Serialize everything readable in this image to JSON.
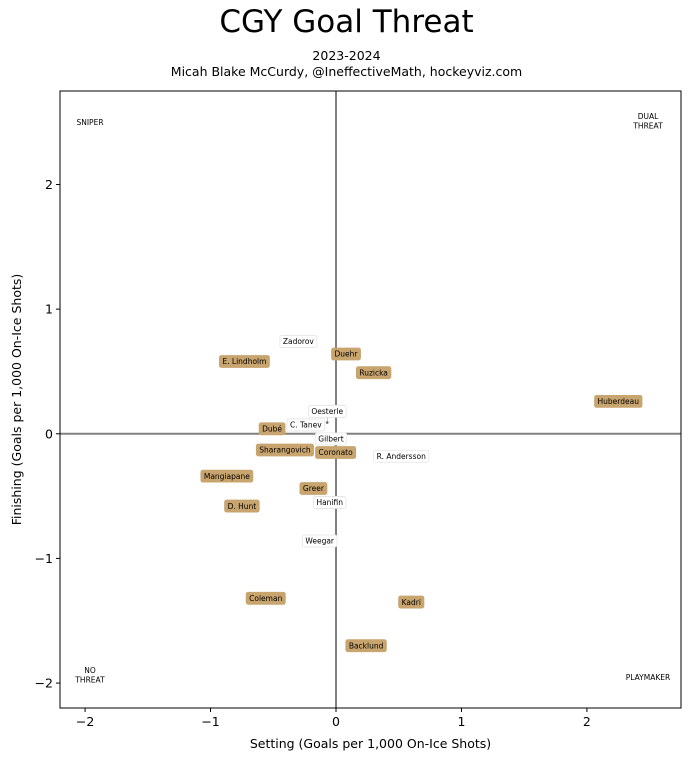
{
  "chart_data": {
    "type": "scatter",
    "title": "CGY Goal Threat",
    "subtitle_lines": [
      "2023-2024",
      "Micah Blake McCurdy, @IneffectiveMath, hockeyviz.com"
    ],
    "xlabel": "Setting (Goals per 1,000 On-Ice Shots)",
    "ylabel": "Finishing (Goals per 1,000 On-Ice Shots)",
    "xlim": [
      -2.2,
      2.75
    ],
    "ylim": [
      -2.2,
      2.75
    ],
    "xticks": [
      -2,
      -1,
      0,
      1,
      2
    ],
    "yticks": [
      -2,
      -1,
      0,
      1,
      2
    ],
    "xtick_labels": [
      "−2",
      "−1",
      "0",
      "1",
      "2"
    ],
    "ytick_labels": [
      "−2",
      "−1",
      "0",
      "1",
      "2"
    ],
    "grid": false,
    "reference_lines": {
      "x": 0,
      "y": 0,
      "color": "#808080"
    },
    "quadrant_labels": [
      {
        "lines": [
          "SNIPER"
        ],
        "corner": "top-left"
      },
      {
        "lines": [
          "DUAL",
          "THREAT"
        ],
        "corner": "top-right"
      },
      {
        "lines": [
          "NO",
          "THREAT"
        ],
        "corner": "bottom-left"
      },
      {
        "lines": [
          "PLAYMAKER"
        ],
        "corner": "bottom-right"
      }
    ],
    "colors": {
      "forward": "#c8a46e",
      "defense": "#ffffff"
    },
    "points": [
      {
        "name": "Zadorov",
        "x": -0.3,
        "y": 0.74,
        "group": "defense"
      },
      {
        "name": "E. Lindholm",
        "x": -0.73,
        "y": 0.58,
        "group": "forward"
      },
      {
        "name": "Duehr",
        "x": 0.08,
        "y": 0.64,
        "group": "forward"
      },
      {
        "name": "Ruzicka",
        "x": 0.3,
        "y": 0.49,
        "group": "forward"
      },
      {
        "name": "Huberdeau",
        "x": 2.25,
        "y": 0.26,
        "group": "forward"
      },
      {
        "name": "Dubé",
        "x": -0.49,
        "y": 0.04,
        "group": "forward"
      },
      {
        "name": "C. Tanev",
        "x": -0.26,
        "y": 0.05,
        "group": "defense"
      },
      {
        "name": "Oesterle",
        "x": -0.07,
        "y": 0.09,
        "group": "defense"
      },
      {
        "name": "Coronato",
        "x": -0.02,
        "y": -0.06,
        "group": "forward"
      },
      {
        "name": "Gilbert",
        "x": -0.04,
        "y": -0.02,
        "group": "defense"
      },
      {
        "name": "Sharangovich",
        "x": -0.39,
        "y": -0.13,
        "group": "forward"
      },
      {
        "name": "R. Andersson",
        "x": 0.52,
        "y": -0.18,
        "group": "defense"
      },
      {
        "name": "Mangiapane",
        "x": -0.87,
        "y": -0.34,
        "group": "forward"
      },
      {
        "name": "D. Hunt",
        "x": -0.75,
        "y": -0.58,
        "group": "forward"
      },
      {
        "name": "Greer",
        "x": -0.18,
        "y": -0.47,
        "group": "forward"
      },
      {
        "name": "Hanifin",
        "x": -0.05,
        "y": -0.52,
        "group": "defense"
      },
      {
        "name": "Weegar",
        "x": -0.13,
        "y": -0.86,
        "group": "defense"
      },
      {
        "name": "Coleman",
        "x": -0.56,
        "y": -1.32,
        "group": "forward"
      },
      {
        "name": "Kadri",
        "x": 0.6,
        "y": -1.35,
        "group": "forward"
      },
      {
        "name": "Backlund",
        "x": 0.24,
        "y": -1.7,
        "group": "forward"
      }
    ]
  }
}
